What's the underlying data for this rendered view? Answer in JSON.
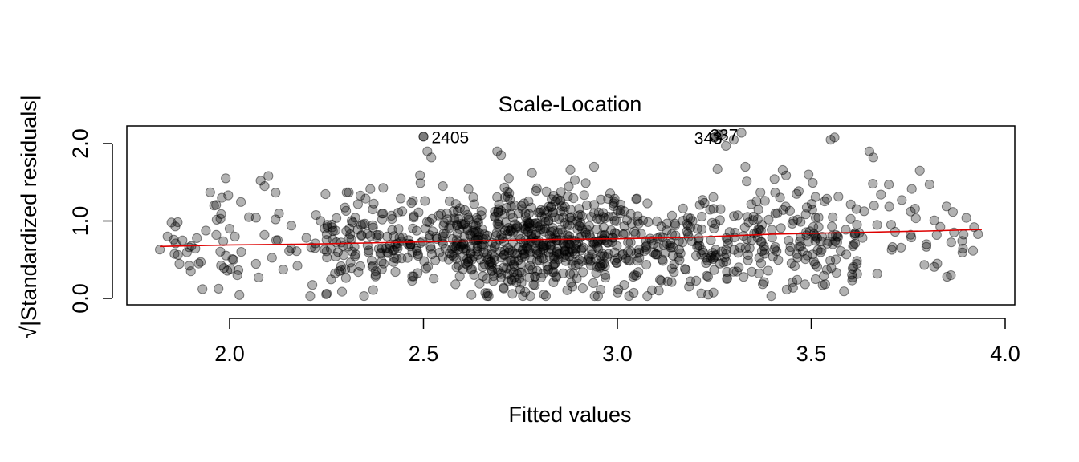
{
  "chart_data": {
    "type": "scatter",
    "title": "Scale-Location",
    "xlabel": "Fitted values",
    "ylabel": "√|Standardized residuals|",
    "xlim": [
      1.82,
      3.94
    ],
    "ylim": [
      0.0,
      2.2
    ],
    "x_ticks": [
      2.0,
      2.5,
      3.0,
      3.5,
      4.0
    ],
    "x_tick_labels": [
      "2.0",
      "2.5",
      "3.0",
      "3.5",
      "4.0"
    ],
    "y_ticks": [
      0.0,
      1.0,
      2.0
    ],
    "y_tick_labels": [
      "0.0",
      "1.0",
      "2.0"
    ],
    "grid": false,
    "point_color": "#000000",
    "point_opacity": 0.3,
    "smoother_color": "#dd0000",
    "smoother": {
      "x": [
        1.82,
        2.0,
        2.2,
        2.4,
        2.6,
        2.8,
        3.0,
        3.2,
        3.4,
        3.6,
        3.8,
        3.94
      ],
      "y": [
        0.67,
        0.69,
        0.7,
        0.72,
        0.74,
        0.76,
        0.77,
        0.79,
        0.83,
        0.85,
        0.87,
        0.89
      ]
    },
    "labeled_points": [
      {
        "label": "2405",
        "x": 2.5,
        "y": 2.09
      },
      {
        "label": "343",
        "x": 3.25,
        "y": 2.08
      },
      {
        "label": "337",
        "x": 3.27,
        "y": 2.12
      }
    ],
    "notable_points": {
      "x": [
        1.82,
        1.84,
        1.85,
        1.86,
        1.9,
        1.92,
        1.93,
        1.95,
        1.96,
        1.98,
        1.99,
        2.0,
        2.01,
        2.02,
        2.03,
        2.05,
        2.08,
        2.09,
        2.1,
        2.12,
        2.5,
        2.51,
        2.52,
        2.55,
        2.69,
        2.7,
        2.72,
        2.78,
        2.94,
        3.25,
        3.26,
        3.28,
        3.3,
        3.32,
        3.33,
        3.55,
        3.56,
        3.65,
        3.66,
        3.7,
        3.78,
        3.85,
        3.86,
        3.9,
        3.92,
        3.93
      ],
      "y": [
        0.63,
        0.8,
        0.98,
        0.93,
        0.35,
        0.45,
        0.12,
        1.37,
        1.2,
        1.3,
        1.55,
        0.9,
        0.5,
        0.3,
        0.6,
        1.05,
        1.52,
        1.45,
        1.58,
        0.75,
        2.09,
        1.9,
        1.82,
        1.45,
        1.9,
        1.85,
        1.55,
        1.62,
        1.7,
        2.08,
        2.12,
        1.97,
        2.05,
        2.14,
        1.7,
        2.05,
        2.08,
        1.9,
        1.82,
        1.47,
        1.65,
        0.28,
        0.3,
        1.04,
        0.92,
        0.83
      ]
    },
    "scatter_seed": 7,
    "scatter_count": 1150
  }
}
